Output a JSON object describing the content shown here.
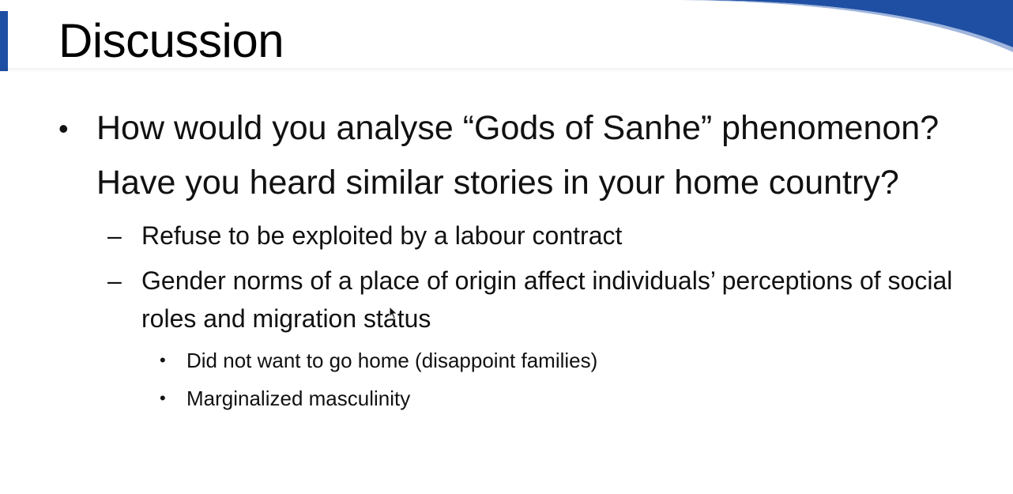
{
  "slide": {
    "title": "Discussion",
    "accent_color": "#1f4fa3",
    "bullets": [
      {
        "level": 1,
        "marker": "•",
        "text": "How would you analyse “Gods of Sanhe” phenomenon? Have you heard similar stories in your home country?"
      },
      {
        "level": 2,
        "marker": "–",
        "text": "Refuse to be exploited by a labour contract"
      },
      {
        "level": 2,
        "marker": "–",
        "text": "Gender norms of a place of origin affect individuals’ perceptions of social roles and migration status"
      },
      {
        "level": 3,
        "marker": "•",
        "text": "Did not want to go home (disappoint families)"
      },
      {
        "level": 3,
        "marker": "•",
        "text": "Marginalized masculinity"
      }
    ]
  },
  "cursor_icon": "arrow-pointer-icon"
}
